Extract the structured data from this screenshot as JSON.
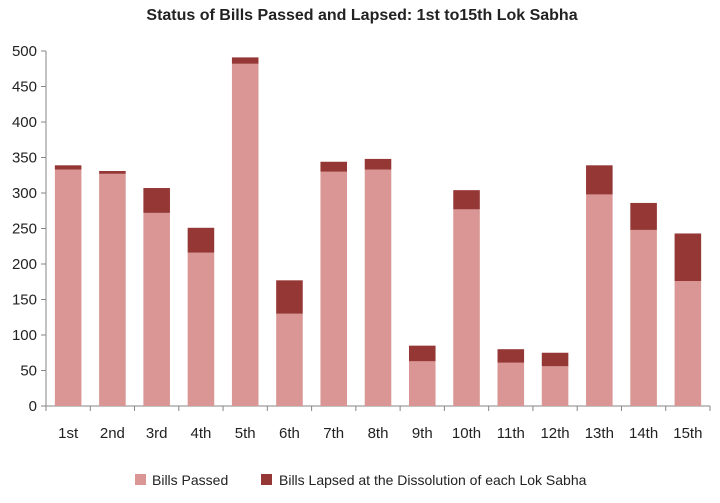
{
  "chart_data": {
    "type": "bar",
    "stacked": true,
    "title": "Status of Bills Passed and Lapsed: 1st to15th Lok Sabha",
    "xlabel": "",
    "ylabel": "",
    "ylim": [
      0,
      500
    ],
    "yticks": [
      0,
      50,
      100,
      150,
      200,
      250,
      300,
      350,
      400,
      450,
      500
    ],
    "grid": false,
    "legend_position": "bottom",
    "categories": [
      "1st",
      "2nd",
      "3rd",
      "4th",
      "5th",
      "6th",
      "7th",
      "8th",
      "9th",
      "10th",
      "11th",
      "12th",
      "13th",
      "14th",
      "15th"
    ],
    "series": [
      {
        "name": "Bills Passed",
        "color": "#d99694",
        "values": [
          333,
          327,
          272,
          216,
          482,
          130,
          330,
          333,
          63,
          277,
          61,
          56,
          298,
          248,
          176
        ]
      },
      {
        "name": "Bills Lapsed at the Dissolution of each Lok Sabha",
        "color": "#953735",
        "values": [
          6,
          4,
          35,
          35,
          9,
          47,
          14,
          15,
          22,
          27,
          19,
          19,
          41,
          38,
          67
        ]
      }
    ]
  }
}
